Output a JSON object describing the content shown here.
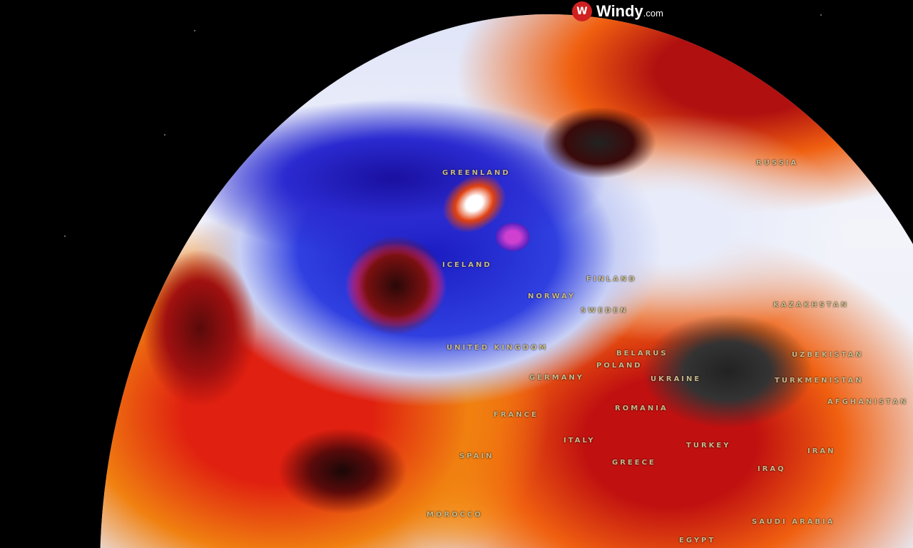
{
  "logo": {
    "name": "Windy",
    "suffix": ".com",
    "icon": "windy-logo-icon"
  },
  "map": {
    "layer": "temperature-anomaly",
    "colors": {
      "cold": "#2a2ad0",
      "extreme_cold": "#e030e0",
      "neutral": "#f3f4fa",
      "warm": "#ffe040",
      "hot": "#e02010",
      "extreme_hot": "#333333"
    }
  },
  "labels": [
    {
      "id": "greenland",
      "text": "GREENLAND"
    },
    {
      "id": "iceland",
      "text": "ICELAND"
    },
    {
      "id": "finland",
      "text": "FINLAND"
    },
    {
      "id": "norway",
      "text": "NORWAY"
    },
    {
      "id": "sweden",
      "text": "SWEDEN"
    },
    {
      "id": "uk",
      "text": "UNITED KINGDOM"
    },
    {
      "id": "russia",
      "text": "RUSSIA"
    },
    {
      "id": "kazakhstan",
      "text": "KAZAKHSTAN"
    },
    {
      "id": "belarus",
      "text": "BELARUS"
    },
    {
      "id": "poland",
      "text": "POLAND"
    },
    {
      "id": "germany",
      "text": "GERMANY"
    },
    {
      "id": "ukraine",
      "text": "UKRAINE"
    },
    {
      "id": "uzbekistan",
      "text": "UZBEKISTAN"
    },
    {
      "id": "turkmenistan",
      "text": "TURKMENISTAN"
    },
    {
      "id": "afghanistan",
      "text": "AFGHANISTAN"
    },
    {
      "id": "france",
      "text": "FRANCE"
    },
    {
      "id": "romania",
      "text": "ROMANIA"
    },
    {
      "id": "italy",
      "text": "ITALY"
    },
    {
      "id": "spain",
      "text": "SPAIN"
    },
    {
      "id": "greece",
      "text": "GREECE"
    },
    {
      "id": "turkey",
      "text": "TURKEY"
    },
    {
      "id": "iran",
      "text": "IRAN"
    },
    {
      "id": "iraq",
      "text": "IRAQ"
    },
    {
      "id": "morocco",
      "text": "MOROCCO"
    },
    {
      "id": "saudi",
      "text": "SAUDI ARABIA"
    },
    {
      "id": "egypt",
      "text": "EGYPT"
    }
  ]
}
